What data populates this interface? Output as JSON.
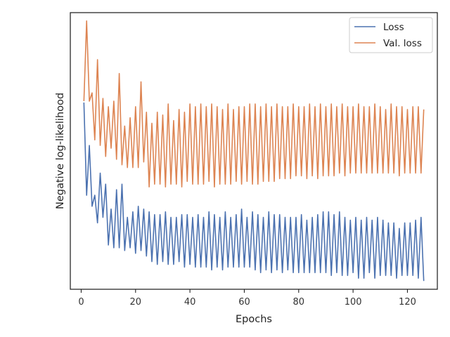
{
  "chart_data": {
    "type": "line",
    "title": "",
    "xlabel": "Epochs",
    "ylabel": "Negative log-likelihood",
    "xlim": [
      -4,
      131
    ],
    "ylim": [
      0,
      100
    ],
    "xticks": [
      0,
      20,
      40,
      60,
      80,
      100,
      120
    ],
    "y_tick_labels_shown": false,
    "grid": false,
    "legend_position": "top-right",
    "series": [
      {
        "name": "Loss",
        "color": "#4c72b0",
        "start_x": 1,
        "step": 1,
        "values": [
          67.5,
          34,
          52,
          30,
          34,
          24,
          42,
          26,
          38,
          16,
          29,
          15,
          36,
          15,
          38,
          14,
          26,
          15,
          28,
          13,
          30,
          14,
          29,
          12,
          28,
          10,
          27,
          9,
          27,
          10,
          28,
          9,
          26,
          9,
          26,
          10,
          27,
          8,
          27,
          9,
          26,
          8,
          27,
          8,
          26,
          8,
          28,
          7,
          27,
          8,
          26,
          7,
          28,
          8,
          26,
          8,
          27,
          8,
          29,
          8,
          26,
          8,
          28,
          7,
          27,
          6,
          26,
          7,
          28,
          6,
          27,
          7,
          27,
          6,
          26,
          7,
          26,
          6,
          26,
          6,
          27,
          6,
          25,
          6,
          26,
          6,
          27,
          6,
          28,
          6,
          28,
          5,
          27,
          6,
          28,
          5,
          26,
          5,
          25,
          6,
          26,
          4,
          25,
          4,
          26,
          6,
          25,
          4,
          26,
          5,
          25,
          5,
          24,
          5,
          24,
          4,
          22,
          5,
          24,
          5,
          24,
          5,
          25,
          4,
          26,
          3
        ]
      },
      {
        "name": "Val. loss",
        "color": "#dd8452",
        "start_x": 1,
        "step": 1,
        "values": [
          68,
          97,
          68,
          71,
          54,
          83,
          52,
          69,
          48,
          66,
          51,
          68,
          47,
          78,
          45,
          59,
          44,
          62,
          44,
          66,
          44,
          75,
          46,
          64,
          37,
          60,
          38,
          64,
          38,
          63,
          37,
          67,
          38,
          61,
          38,
          65,
          37,
          64,
          39,
          67,
          38,
          66,
          38,
          67,
          38,
          66,
          39,
          67,
          37,
          66,
          38,
          65,
          38,
          67,
          38,
          65,
          39,
          66,
          38,
          66,
          39,
          67,
          38,
          67,
          38,
          66,
          39,
          67,
          39,
          66,
          39,
          67,
          40,
          66,
          40,
          66,
          40,
          67,
          41,
          66,
          41,
          66,
          40,
          67,
          41,
          66,
          40,
          67,
          41,
          66,
          41,
          67,
          41,
          66,
          42,
          67,
          41,
          66,
          42,
          66,
          42,
          67,
          42,
          66,
          42,
          66,
          42,
          67,
          42,
          66,
          42,
          65,
          42,
          67,
          42,
          66,
          41,
          66,
          42,
          65,
          42,
          66,
          42,
          66,
          42,
          65
        ]
      }
    ]
  }
}
